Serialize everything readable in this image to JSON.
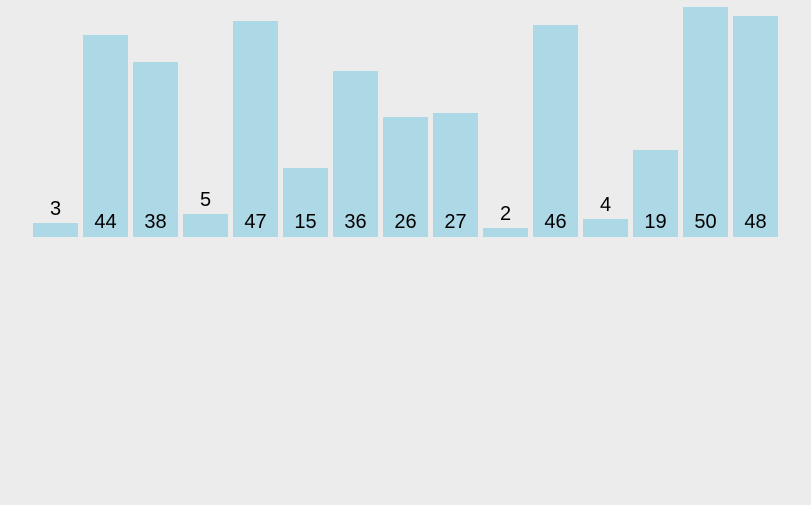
{
  "chart_data": {
    "type": "bar",
    "title": "",
    "xlabel": "",
    "ylabel": "",
    "values": [
      3,
      44,
      38,
      5,
      47,
      15,
      36,
      26,
      27,
      2,
      46,
      4,
      19,
      50,
      48
    ],
    "data_labels": [
      3,
      44,
      38,
      5,
      47,
      15,
      36,
      26,
      27,
      2,
      46,
      4,
      19,
      50,
      48
    ],
    "ylim": [
      0,
      51.5
    ],
    "grid": false,
    "legend": false,
    "axes_visible": false,
    "label_placement_rule": "inside-bottom for tall bars, above bar for short bars (values 2-5)",
    "colors": {
      "background": "#ececec",
      "bar_fill": "#add8e6",
      "label_text": "#000000"
    }
  }
}
